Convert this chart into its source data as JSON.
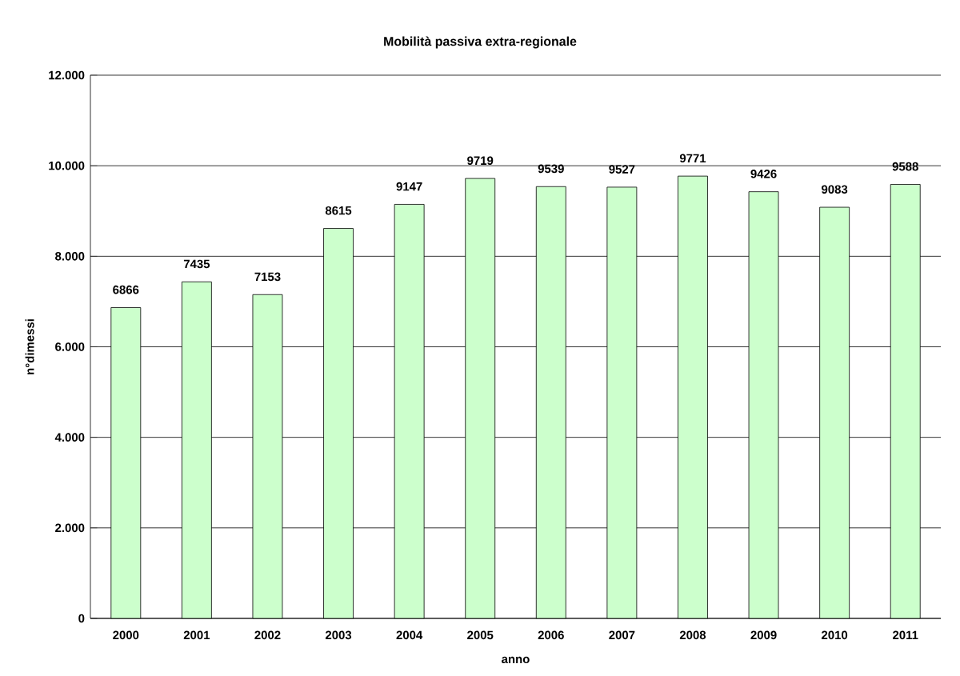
{
  "chart_data": {
    "type": "bar",
    "title": "Mobilità passiva extra-regionale",
    "xlabel": "anno",
    "ylabel": "n°dimessi",
    "categories": [
      "2000",
      "2001",
      "2002",
      "2003",
      "2004",
      "2005",
      "2006",
      "2007",
      "2008",
      "2009",
      "2010",
      "2011"
    ],
    "values": [
      6866,
      7435,
      7153,
      8615,
      9147,
      9719,
      9539,
      9527,
      9771,
      9426,
      9083,
      9588
    ],
    "color": "#ccffcc",
    "ylim": [
      0,
      12000
    ],
    "yticks": [
      {
        "value": 0,
        "label": "0"
      },
      {
        "value": 2000,
        "label": "2.000"
      },
      {
        "value": 4000,
        "label": "4.000"
      },
      {
        "value": 6000,
        "label": "6.000"
      },
      {
        "value": 8000,
        "label": "8.000"
      },
      {
        "value": 10000,
        "label": "10.000"
      },
      {
        "value": 12000,
        "label": "12.000"
      }
    ],
    "grid": "y",
    "data_labels": true
  }
}
